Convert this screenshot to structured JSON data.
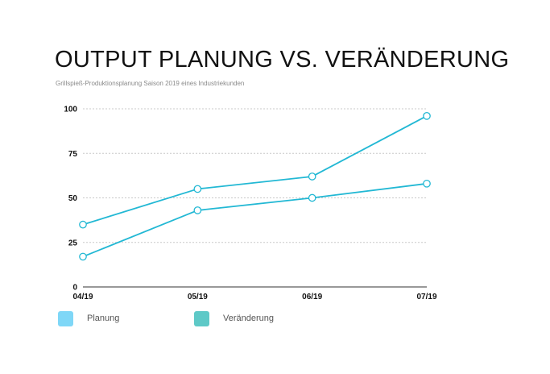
{
  "page": {
    "title": "OUTPUT PLANUNG VS. VERÄNDERUNG",
    "subtitle": "Grillspieß-Produktionsplanung Saison 2019 eines Industriekunden"
  },
  "colors": {
    "line": "#22b8d4",
    "grid": "#c8c8c8",
    "axis": "#333333",
    "tick_text": "#111111"
  },
  "chart_data": {
    "type": "line",
    "title": "OUTPUT PLANUNG VS. VERÄNDERUNG",
    "subtitle": "Grillspieß-Produktionsplanung Saison 2019 eines Industriekunden",
    "categories": [
      "04/19",
      "05/19",
      "06/19",
      "07/19"
    ],
    "yticks": [
      0,
      25,
      50,
      75,
      100
    ],
    "ylim": [
      0,
      100
    ],
    "grid": true,
    "legend_position": "bottom-left",
    "series": [
      {
        "name": "Planung",
        "values": [
          17,
          43,
          50,
          58
        ],
        "legend_color": "#7fd7f7"
      },
      {
        "name": "Veränderung",
        "values": [
          35,
          55,
          62,
          96
        ],
        "legend_color": "#5ec9c7"
      }
    ]
  }
}
